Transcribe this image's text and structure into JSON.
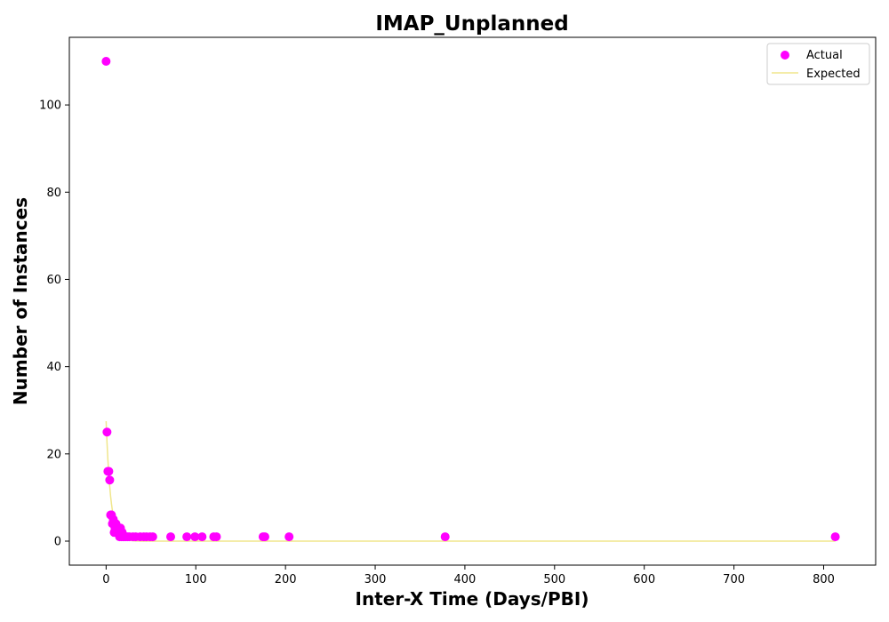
{
  "chart_data": {
    "type": "scatter",
    "title": "IMAP_Unplanned",
    "xlabel": "Inter-X Time (Days/PBI)",
    "ylabel": "Number of Instances",
    "xlim": [
      -41,
      858
    ],
    "ylim": [
      -5.5,
      115.5
    ],
    "xticks": [
      0,
      100,
      200,
      300,
      400,
      500,
      600,
      700,
      800
    ],
    "yticks": [
      0,
      20,
      40,
      60,
      80,
      100
    ],
    "grid": false,
    "legend_position": "top-right",
    "legend": [
      "Actual",
      "Expected"
    ],
    "series": [
      {
        "name": "Actual",
        "kind": "scatter",
        "color": "#ff00ff",
        "x": [
          0,
          1,
          2,
          3,
          4,
          5,
          6,
          7,
          8,
          9,
          10,
          11,
          12,
          13,
          14,
          15,
          16,
          17,
          18,
          19,
          20,
          22,
          24,
          26,
          30,
          33,
          38,
          42,
          45,
          49,
          52,
          72,
          90,
          99,
          107,
          120,
          123,
          175,
          177,
          204,
          378,
          813
        ],
        "y": [
          110,
          25,
          16,
          16,
          14,
          6,
          6,
          4,
          5,
          2,
          3,
          4,
          3,
          2,
          2,
          1,
          3,
          1,
          2,
          1,
          1,
          1,
          1,
          1,
          1,
          1,
          1,
          1,
          1,
          1,
          1,
          1,
          1,
          1,
          1,
          1,
          1,
          1,
          1,
          1,
          1,
          1
        ]
      },
      {
        "name": "Expected",
        "kind": "line",
        "color": "#f0e68c",
        "x": [
          0,
          1,
          2,
          3,
          4,
          5,
          6,
          7,
          8,
          9,
          10,
          11,
          12,
          13,
          14,
          15,
          16,
          18,
          20,
          22,
          25,
          28,
          32,
          36,
          40,
          50,
          60,
          80,
          100,
          150,
          200,
          300,
          400,
          500,
          600,
          700,
          813
        ],
        "y": [
          27.5,
          22.6,
          18.6,
          15.3,
          12.6,
          10.3,
          8.5,
          7.0,
          5.7,
          4.7,
          3.9,
          3.2,
          2.6,
          2.2,
          1.8,
          1.5,
          1.2,
          0.8,
          0.5,
          0.37,
          0.21,
          0.12,
          0.05,
          0.02,
          0.01,
          0.0,
          0.0,
          0.0,
          0.0,
          0.0,
          0.0,
          0.0,
          0.0,
          0.0,
          0.0,
          0.0,
          0.0
        ]
      }
    ]
  }
}
